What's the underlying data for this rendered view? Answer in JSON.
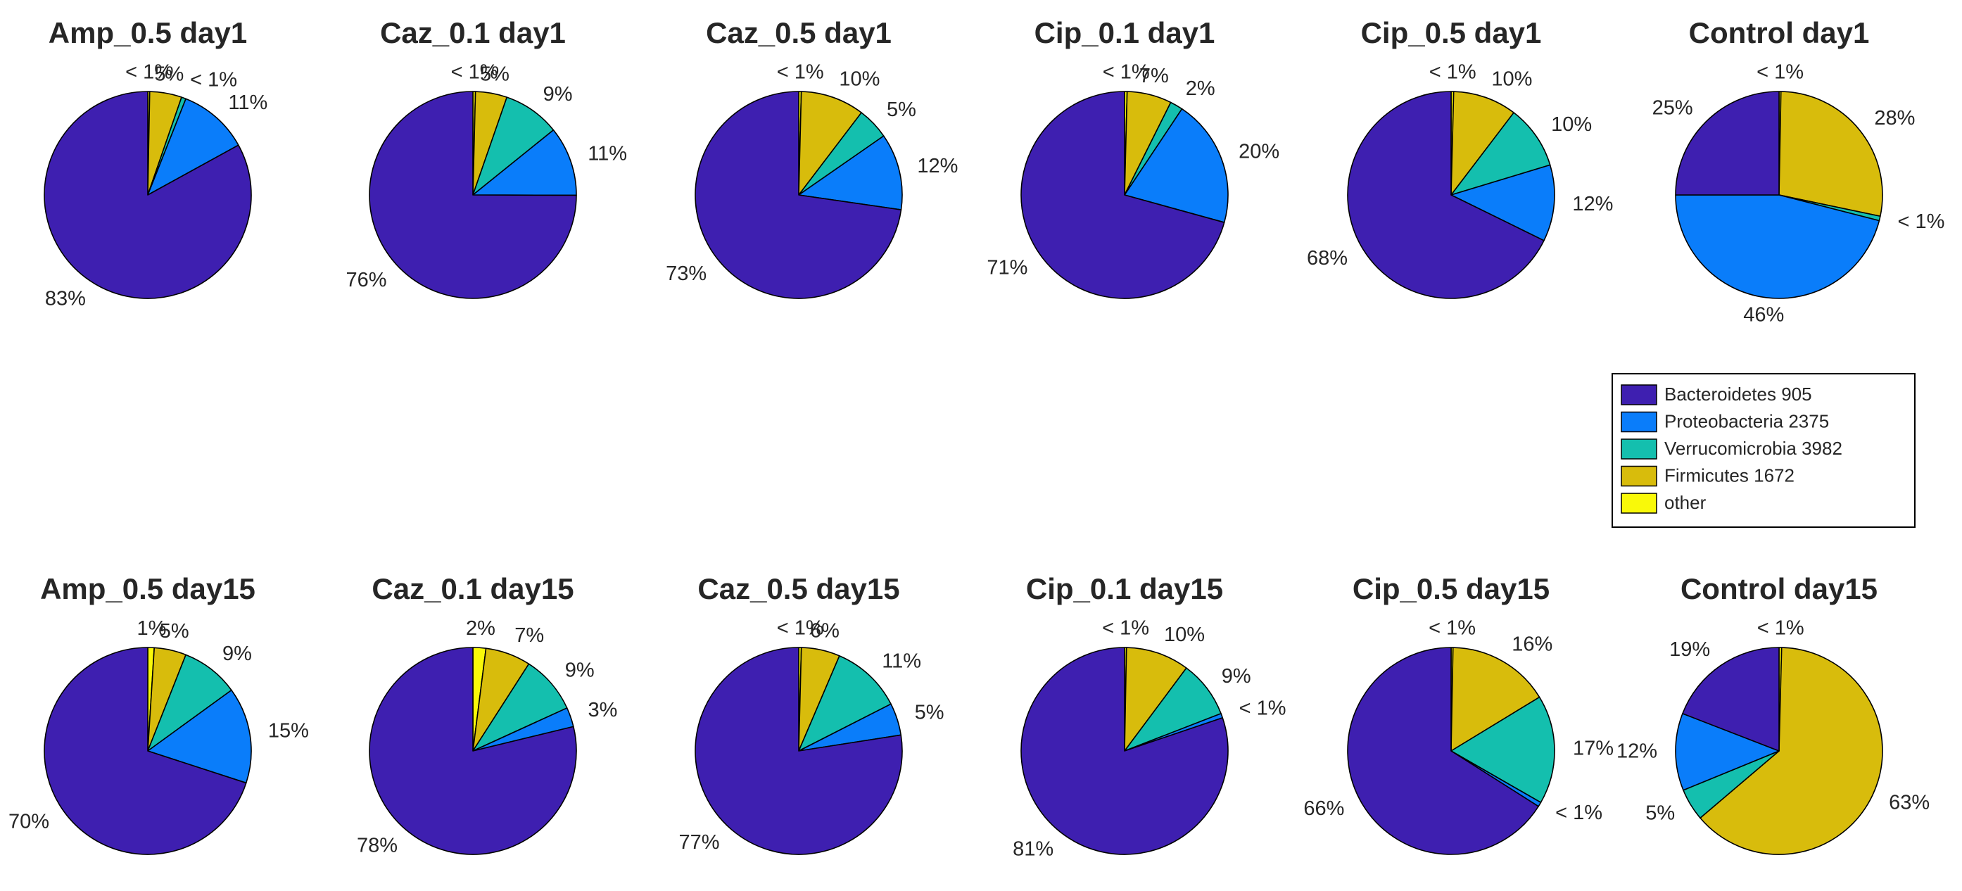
{
  "colors": {
    "Bacteroidetes": "#3e1fb0",
    "Proteobacteria": "#0a7dfa",
    "Verrucomicrobia": "#14bfae",
    "Firmicutes": "#d8bc0c",
    "other": "#f9f909"
  },
  "legend": [
    {
      "label": "Bacteroidetes 905",
      "key": "Bacteroidetes"
    },
    {
      "label": "Proteobacteria 2375",
      "key": "Proteobacteria"
    },
    {
      "label": "Verrucomicrobia 3982",
      "key": "Verrucomicrobia"
    },
    {
      "label": "Firmicutes 1672",
      "key": "Firmicutes"
    },
    {
      "label": "other",
      "key": "other"
    }
  ],
  "chart_data": [
    {
      "type": "pie",
      "title": "Amp_0.5 day1",
      "slices": [
        {
          "category": "other",
          "value": 0.3,
          "label": "< 1%"
        },
        {
          "category": "Firmicutes",
          "value": 5,
          "label": "5%"
        },
        {
          "category": "Verrucomicrobia",
          "value": 0.7,
          "label": "< 1%"
        },
        {
          "category": "Proteobacteria",
          "value": 11,
          "label": "11%"
        },
        {
          "category": "Bacteroidetes",
          "value": 83,
          "label": "83%"
        }
      ]
    },
    {
      "type": "pie",
      "title": "Caz_0.1 day1",
      "slices": [
        {
          "category": "other",
          "value": 0.4,
          "label": "< 1%"
        },
        {
          "category": "Firmicutes",
          "value": 5,
          "label": "5%"
        },
        {
          "category": "Verrucomicrobia",
          "value": 9,
          "label": "9%"
        },
        {
          "category": "Proteobacteria",
          "value": 11,
          "label": "11%"
        },
        {
          "category": "Bacteroidetes",
          "value": 76,
          "label": "76%"
        }
      ]
    },
    {
      "type": "pie",
      "title": "Caz_0.5 day1",
      "slices": [
        {
          "category": "other",
          "value": 0.4,
          "label": "< 1%"
        },
        {
          "category": "Firmicutes",
          "value": 10,
          "label": "10%"
        },
        {
          "category": "Verrucomicrobia",
          "value": 5,
          "label": "5%"
        },
        {
          "category": "Proteobacteria",
          "value": 12,
          "label": "12%"
        },
        {
          "category": "Bacteroidetes",
          "value": 73,
          "label": "73%"
        }
      ]
    },
    {
      "type": "pie",
      "title": "Cip_0.1 day1",
      "slices": [
        {
          "category": "other",
          "value": 0.4,
          "label": "< 1%"
        },
        {
          "category": "Firmicutes",
          "value": 7,
          "label": "7%"
        },
        {
          "category": "Verrucomicrobia",
          "value": 2,
          "label": "2%"
        },
        {
          "category": "Proteobacteria",
          "value": 20,
          "label": "20%"
        },
        {
          "category": "Bacteroidetes",
          "value": 71,
          "label": "71%"
        }
      ]
    },
    {
      "type": "pie",
      "title": "Cip_0.5 day1",
      "slices": [
        {
          "category": "other",
          "value": 0.4,
          "label": "< 1%"
        },
        {
          "category": "Firmicutes",
          "value": 10,
          "label": "10%"
        },
        {
          "category": "Verrucomicrobia",
          "value": 10,
          "label": "10%"
        },
        {
          "category": "Proteobacteria",
          "value": 12,
          "label": "12%"
        },
        {
          "category": "Bacteroidetes",
          "value": 68,
          "label": "68%"
        }
      ]
    },
    {
      "type": "pie",
      "title": "Control day1",
      "slices": [
        {
          "category": "other",
          "value": 0.3,
          "label": "< 1%"
        },
        {
          "category": "Firmicutes",
          "value": 28,
          "label": "28%"
        },
        {
          "category": "Verrucomicrobia",
          "value": 0.7,
          "label": "< 1%"
        },
        {
          "category": "Proteobacteria",
          "value": 46,
          "label": "46%"
        },
        {
          "category": "Bacteroidetes",
          "value": 25,
          "label": "25%"
        }
      ]
    },
    {
      "type": "pie",
      "title": "Amp_0.5 day15",
      "slices": [
        {
          "category": "other",
          "value": 1,
          "label": "1%"
        },
        {
          "category": "Firmicutes",
          "value": 5,
          "label": "5%"
        },
        {
          "category": "Verrucomicrobia",
          "value": 9,
          "label": "9%"
        },
        {
          "category": "Proteobacteria",
          "value": 15,
          "label": "15%"
        },
        {
          "category": "Bacteroidetes",
          "value": 70,
          "label": "70%"
        }
      ]
    },
    {
      "type": "pie",
      "title": "Caz_0.1 day15",
      "slices": [
        {
          "category": "other",
          "value": 2,
          "label": "2%"
        },
        {
          "category": "Firmicutes",
          "value": 7,
          "label": "7%"
        },
        {
          "category": "Verrucomicrobia",
          "value": 9,
          "label": "9%"
        },
        {
          "category": "Proteobacteria",
          "value": 3,
          "label": "3%"
        },
        {
          "category": "Bacteroidetes",
          "value": 78,
          "label": "78%"
        }
      ]
    },
    {
      "type": "pie",
      "title": "Caz_0.5 day15",
      "slices": [
        {
          "category": "other",
          "value": 0.4,
          "label": "< 1%"
        },
        {
          "category": "Firmicutes",
          "value": 6,
          "label": "6%"
        },
        {
          "category": "Verrucomicrobia",
          "value": 11,
          "label": "11%"
        },
        {
          "category": "Proteobacteria",
          "value": 5,
          "label": "5%"
        },
        {
          "category": "Bacteroidetes",
          "value": 77,
          "label": "77%"
        }
      ]
    },
    {
      "type": "pie",
      "title": "Cip_0.1 day15",
      "slices": [
        {
          "category": "other",
          "value": 0.3,
          "label": "< 1%"
        },
        {
          "category": "Firmicutes",
          "value": 10,
          "label": "10%"
        },
        {
          "category": "Verrucomicrobia",
          "value": 9,
          "label": "9%"
        },
        {
          "category": "Proteobacteria",
          "value": 0.7,
          "label": "< 1%"
        },
        {
          "category": "Bacteroidetes",
          "value": 81,
          "label": "81%"
        }
      ]
    },
    {
      "type": "pie",
      "title": "Cip_0.5 day15",
      "slices": [
        {
          "category": "other",
          "value": 0.3,
          "label": "< 1%"
        },
        {
          "category": "Firmicutes",
          "value": 16,
          "label": "16%"
        },
        {
          "category": "Verrucomicrobia",
          "value": 17,
          "label": "17%"
        },
        {
          "category": "Proteobacteria",
          "value": 0.7,
          "label": "< 1%"
        },
        {
          "category": "Bacteroidetes",
          "value": 66,
          "label": "66%"
        }
      ]
    },
    {
      "type": "pie",
      "title": "Control day15",
      "slices": [
        {
          "category": "other",
          "value": 0.4,
          "label": "< 1%"
        },
        {
          "category": "Firmicutes",
          "value": 63,
          "label": "63%"
        },
        {
          "category": "Verrucomicrobia",
          "value": 5,
          "label": "5%"
        },
        {
          "category": "Proteobacteria",
          "value": 12,
          "label": "12%"
        },
        {
          "category": "Bacteroidetes",
          "value": 19,
          "label": "19%"
        }
      ]
    }
  ]
}
